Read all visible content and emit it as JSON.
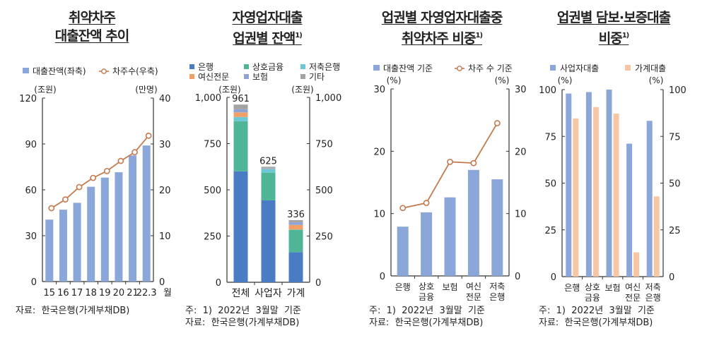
{
  "chart_data": [
    {
      "type": "bar+line",
      "title_lines": [
        "취약차주",
        "대출잔액 추이"
      ],
      "title_sup": "",
      "legend_position": "top",
      "categories": [
        "15",
        "16",
        "17",
        "18",
        "19",
        "20",
        "21",
        "22.3"
      ],
      "x_unit": "월",
      "left_unit": "(조원)",
      "right_unit": "(만명)",
      "ylim_left": [
        0,
        120
      ],
      "yticks_left": [
        0,
        30,
        60,
        90,
        120
      ],
      "ylim_right": [
        0,
        40
      ],
      "yticks_right": [
        0,
        10,
        20,
        30,
        40
      ],
      "series": [
        {
          "name": "대출잔액(좌축)",
          "type": "bar",
          "axis": "left",
          "color": "#8BA6D9",
          "values": [
            40.5,
            47,
            51.5,
            62,
            68,
            71.5,
            82.5,
            89
          ]
        },
        {
          "name": "차주수(우축)",
          "type": "line",
          "axis": "right",
          "color": "#C27A4E",
          "values": [
            16.0,
            17.9,
            20.6,
            22.6,
            24.1,
            26.3,
            28.2,
            31.8
          ]
        }
      ],
      "notes": [
        "자료:  한국은행(가계부채DB)"
      ],
      "grid": false
    },
    {
      "type": "stacked-bar",
      "title_lines": [
        "자영업자대출",
        "업권별 잔액"
      ],
      "title_sup": "1)",
      "legend_position": "top",
      "categories": [
        "전체",
        "사업자",
        "가계"
      ],
      "left_unit": "(조원)",
      "right_unit": "(조원)",
      "ylim_left": [
        0,
        1000
      ],
      "yticks_left": [
        "0",
        "250",
        "500",
        "750",
        "1,000"
      ],
      "ytick_values": [
        0,
        250,
        500,
        750,
        1000
      ],
      "totals": [
        "961",
        "625",
        "336"
      ],
      "series": [
        {
          "name": "은행",
          "color": "#4A7CC4",
          "values": [
            600,
            443,
            163
          ]
        },
        {
          "name": "상호금융",
          "color": "#4FB596",
          "values": [
            271,
            150,
            121
          ]
        },
        {
          "name": "저축은행",
          "color": "#6CC7D7",
          "values": [
            23,
            20,
            1
          ]
        },
        {
          "name": "여신전문",
          "color": "#F0A066",
          "values": [
            25,
            2,
            25
          ]
        },
        {
          "name": "보험",
          "color": "#8FA3D4",
          "values": [
            17,
            4,
            15
          ]
        },
        {
          "name": "기타",
          "color": "#A3A3A3",
          "values": [
            25,
            6,
            11
          ]
        }
      ],
      "notes": [
        "주:  1)  2022년  3월말  기준",
        "자료:  한국은행(가계부채DB)"
      ],
      "grid": false
    },
    {
      "type": "bar+line",
      "title_lines": [
        "업권별 자영업자대출중",
        "취약차주 비중"
      ],
      "title_sup": "1)",
      "legend_position": "top",
      "categories": [
        "은행",
        "상호\n금융",
        "보험",
        "여신\n전문",
        "저축\n은행"
      ],
      "left_unit": "(%)",
      "right_unit": "(%)",
      "ylim_left": [
        0,
        30
      ],
      "yticks_left": [
        0,
        10,
        20,
        30
      ],
      "ylim_right": [
        0,
        30
      ],
      "yticks_right": [
        0,
        10,
        20,
        30
      ],
      "series": [
        {
          "name": "대출잔액 기준",
          "type": "bar",
          "axis": "left",
          "color": "#8BA6D9",
          "values": [
            7.9,
            10.2,
            12.6,
            17.0,
            15.5
          ]
        },
        {
          "name": "차주 수 기준",
          "type": "line",
          "axis": "right",
          "color": "#C27A4E",
          "values": [
            10.9,
            11.7,
            18.3,
            18.1,
            24.5
          ]
        }
      ],
      "notes": [
        "주:  1)  2022년  3월말  기준",
        "자료:  한국은행(가계부채DB)"
      ],
      "grid": false
    },
    {
      "type": "grouped-bar",
      "title_lines": [
        "업권별 담보·보증대출",
        "비중"
      ],
      "title_sup": "1)",
      "legend_position": "top",
      "categories": [
        "은행",
        "상호\n금융",
        "보험",
        "여신\n전문",
        "저축\n은행"
      ],
      "left_unit": "(%)",
      "right_unit": "(%)",
      "ylim_left": [
        0,
        100
      ],
      "yticks_left": [
        0,
        25,
        50,
        75,
        100
      ],
      "ylim_right": [
        0,
        100
      ],
      "yticks_right": [
        0,
        25,
        50,
        75,
        100
      ],
      "series": [
        {
          "name": "사업자대출",
          "color": "#8BA6D9",
          "values": [
            97.9,
            98.7,
            100,
            71.1,
            83.3
          ]
        },
        {
          "name": "가계대출",
          "color": "#F7C6A3",
          "values": [
            84.6,
            90.7,
            87.2,
            13.0,
            42.9
          ]
        }
      ],
      "notes": [
        "주:  1)  2022년  3월말  기준",
        "자료:  한국은행(가계부채DB)"
      ],
      "grid": false
    }
  ]
}
